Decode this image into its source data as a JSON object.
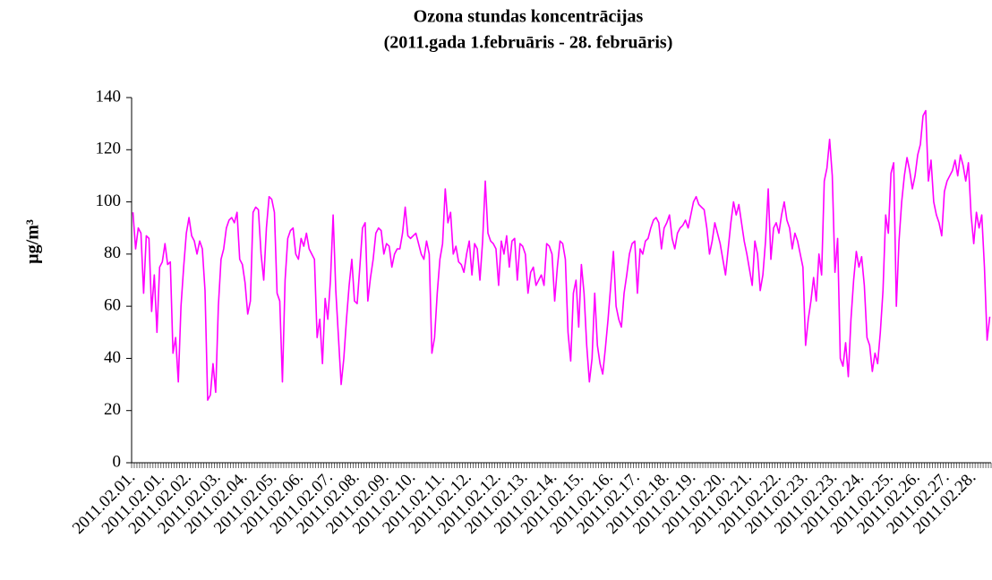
{
  "chart_data": {
    "type": "line",
    "title": "Ozona stundas koncentrācijas",
    "subtitle": "(2011.gada 1.februāris - 28. februāris)",
    "y_label": "µg/m³",
    "color": "#ff00ff",
    "ylim": [
      0,
      140
    ],
    "yticks": [
      0,
      20,
      40,
      60,
      80,
      100,
      120,
      140
    ],
    "grid": false,
    "categories": [
      "2011.02.01.",
      null,
      null,
      null,
      null,
      null,
      null,
      null,
      null,
      null,
      null,
      "2011.02.01.",
      null,
      null,
      null,
      null,
      null,
      null,
      null,
      null,
      null,
      "2011.02.02.",
      null,
      null,
      null,
      null,
      null,
      null,
      null,
      null,
      null,
      null,
      "2011.02.03.",
      null,
      null,
      null,
      null,
      null,
      null,
      null,
      null,
      null,
      "2011.02.04.",
      null,
      null,
      null,
      null,
      null,
      null,
      null,
      null,
      null,
      null,
      "2011.02.05.",
      null,
      null,
      null,
      null,
      null,
      null,
      null,
      null,
      null,
      "2011.02.06.",
      null,
      null,
      null,
      null,
      null,
      null,
      null,
      null,
      null,
      null,
      "2011.02.07.",
      null,
      null,
      null,
      null,
      null,
      null,
      null,
      null,
      null,
      "2011.02.08.",
      null,
      null,
      null,
      null,
      null,
      null,
      null,
      null,
      null,
      null,
      "2011.02.09.",
      null,
      null,
      null,
      null,
      null,
      null,
      null,
      null,
      null,
      "2011.02.10.",
      null,
      null,
      null,
      null,
      null,
      null,
      null,
      null,
      null,
      null,
      "2011.02.11.",
      null,
      null,
      null,
      null,
      null,
      null,
      null,
      null,
      null,
      "2011.02.12.",
      null,
      null,
      null,
      null,
      null,
      null,
      null,
      null,
      null,
      null,
      "2011.02.12.",
      null,
      null,
      null,
      null,
      null,
      null,
      null,
      null,
      null,
      "2011.02.13.",
      null,
      null,
      null,
      null,
      null,
      null,
      null,
      null,
      null,
      null,
      "2011.02.14.",
      null,
      null,
      null,
      null,
      null,
      null,
      null,
      null,
      null,
      "2011.02.15.",
      null,
      null,
      null,
      null,
      null,
      null,
      null,
      null,
      null,
      null,
      "2011.02.16.",
      null,
      null,
      null,
      null,
      null,
      null,
      null,
      null,
      null,
      "2011.02.17.",
      null,
      null,
      null,
      null,
      null,
      null,
      null,
      null,
      null,
      null,
      "2011.02.18.",
      null,
      null,
      null,
      null,
      null,
      null,
      null,
      null,
      null,
      "2011.02.19.",
      null,
      null,
      null,
      null,
      null,
      null,
      null,
      null,
      null,
      null,
      "2011.02.20.",
      null,
      null,
      null,
      null,
      null,
      null,
      null,
      null,
      null,
      "2011.02.21.",
      null,
      null,
      null,
      null,
      null,
      null,
      null,
      null,
      null,
      null,
      "2011.02.22.",
      null,
      null,
      null,
      null,
      null,
      null,
      null,
      null,
      null,
      "2011.02.23.",
      null,
      null,
      null,
      null,
      null,
      null,
      null,
      null,
      null,
      null,
      "2011.02.23.",
      null,
      null,
      null,
      null,
      null,
      null,
      null,
      null,
      null,
      "2011.02.24.",
      null,
      null,
      null,
      null,
      null,
      null,
      null,
      null,
      null,
      null,
      "2011.02.25.",
      null,
      null,
      null,
      null,
      null,
      null,
      null,
      null,
      null,
      "2011.02.26.",
      null,
      null,
      null,
      null,
      null,
      null,
      null,
      null,
      null,
      null,
      "2011.02.27.",
      null,
      null,
      null,
      null,
      null,
      null,
      null,
      null,
      null,
      "2011.02.28.",
      null,
      null,
      null,
      null,
      null,
      null
    ],
    "values": [
      96,
      82,
      90,
      88,
      65,
      87,
      86,
      58,
      72,
      50,
      75,
      77,
      84,
      76,
      77,
      42,
      48,
      31,
      60,
      75,
      88,
      94,
      87,
      85,
      80,
      85,
      82,
      66,
      24,
      26,
      38,
      27,
      60,
      78,
      82,
      90,
      93,
      94,
      92,
      96,
      78,
      76,
      69,
      57,
      62,
      96,
      98,
      97,
      80,
      70,
      90,
      102,
      101,
      96,
      65,
      62,
      31,
      70,
      86,
      89,
      90,
      80,
      78,
      86,
      83,
      88,
      82,
      80,
      78,
      48,
      55,
      38,
      63,
      55,
      70,
      95,
      66,
      48,
      30,
      40,
      55,
      68,
      78,
      62,
      61,
      75,
      90,
      92,
      62,
      71,
      78,
      88,
      90,
      89,
      80,
      84,
      83,
      75,
      80,
      82,
      82,
      88,
      98,
      87,
      86,
      87,
      88,
      84,
      80,
      78,
      85,
      80,
      42,
      48,
      65,
      78,
      84,
      105,
      92,
      96,
      80,
      83,
      77,
      76,
      73,
      80,
      85,
      72,
      84,
      82,
      70,
      85,
      108,
      88,
      85,
      84,
      82,
      68,
      85,
      80,
      87,
      75,
      85,
      86,
      70,
      84,
      83,
      80,
      65,
      73,
      75,
      68,
      70,
      72,
      68,
      84,
      83,
      80,
      62,
      75,
      85,
      84,
      78,
      50,
      39,
      65,
      70,
      52,
      76,
      65,
      45,
      31,
      40,
      65,
      45,
      38,
      34,
      44,
      55,
      68,
      81,
      60,
      55,
      52,
      65,
      72,
      80,
      84,
      85,
      65,
      82,
      80,
      85,
      86,
      90,
      93,
      94,
      92,
      82,
      90,
      92,
      95,
      86,
      82,
      88,
      90,
      91,
      93,
      90,
      95,
      100,
      102,
      99,
      98,
      97,
      90,
      80,
      85,
      92,
      88,
      84,
      78,
      72,
      82,
      92,
      100,
      95,
      99,
      92,
      85,
      80,
      74,
      68,
      85,
      80,
      66,
      72,
      85,
      105,
      78,
      90,
      92,
      88,
      95,
      100,
      93,
      90,
      82,
      88,
      85,
      80,
      75,
      45,
      55,
      62,
      71,
      62,
      80,
      72,
      108,
      113,
      124,
      110,
      73,
      86,
      40,
      37,
      46,
      33,
      55,
      70,
      81,
      75,
      79,
      68,
      48,
      45,
      35,
      42,
      38,
      50,
      66,
      95,
      88,
      111,
      115,
      60,
      85,
      100,
      110,
      117,
      112,
      105,
      110,
      118,
      122,
      133,
      135,
      108,
      116,
      100,
      95,
      92,
      87,
      104,
      108,
      110,
      112,
      116,
      110,
      118,
      114,
      108,
      115,
      95,
      84,
      96,
      90,
      95,
      75,
      47,
      56
    ]
  }
}
